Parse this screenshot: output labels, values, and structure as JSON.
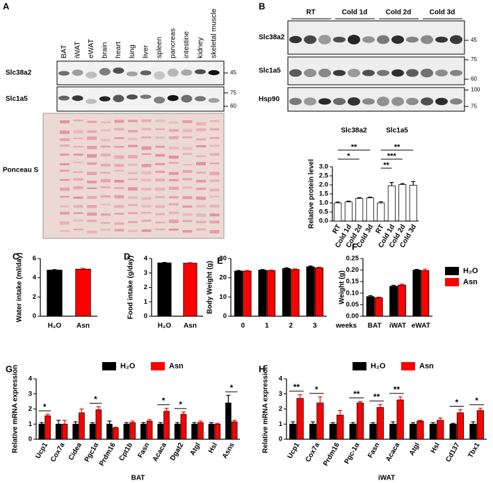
{
  "blot_a": {
    "panel": "A",
    "lanes": [
      "BAT",
      "iWAT",
      "eWAT",
      "brain",
      "heart",
      "lung",
      "liver",
      "spleen",
      "pancreas",
      "intestine",
      "kidney",
      "skeletal muscle"
    ],
    "rows": [
      {
        "label": "Slc38a2",
        "markers": [
          45
        ]
      },
      {
        "label": "Slc1a5",
        "markers": [
          75,
          60
        ]
      }
    ],
    "stain": "Ponceau S"
  },
  "blot_b": {
    "panel": "B",
    "groups": [
      "RT",
      "Cold 1d",
      "Cold 2d",
      "Cold 3d"
    ],
    "rows": [
      {
        "label": "Slc38a2",
        "markers": [
          45
        ]
      },
      {
        "label": "Slc1a5",
        "markers": [
          75,
          60
        ]
      },
      {
        "label": "Hsp90",
        "markers": [
          100,
          75
        ]
      }
    ]
  },
  "chart_data": [
    {
      "type": "bar",
      "group_labels": [
        "Slc38a2",
        "Slc1a5"
      ],
      "categories": [
        "RT",
        "Cold 1d",
        "Cold 2d",
        "Cold 3d",
        "RT",
        "Cold 1d",
        "Cold 2d",
        "Cold 3d"
      ],
      "series": [
        {
          "color": "#ffffff",
          "values": [
            1.0,
            1.05,
            1.25,
            1.28,
            1.0,
            1.95,
            2.02,
            1.98
          ],
          "errors": [
            0.05,
            0.05,
            0.04,
            0.04,
            0.06,
            0.18,
            0.05,
            0.2
          ]
        }
      ],
      "significance": [
        null,
        null,
        "*",
        "**",
        null,
        "**",
        "***",
        "**"
      ],
      "ylabel": "Relative protein level",
      "ylim": [
        0,
        3
      ],
      "yticks": [
        {
          "value": 0,
          "label": "0.0"
        },
        {
          "value": 0.5,
          "label": "0.5"
        },
        {
          "value": 1,
          "label": "1.0"
        },
        {
          "value": 1.5,
          "label": "1.5"
        },
        {
          "value": 2,
          "label": "2.0"
        },
        {
          "value": 2.5,
          "label": "2.5"
        },
        {
          "value": 3,
          "label": "3.0"
        }
      ]
    },
    {
      "type": "bar",
      "panel": "C",
      "ylabel": "Water intake (ml/day)",
      "categories": [
        "H₂O",
        "Asn"
      ],
      "series": [
        {
          "colors": [
            "#000000",
            "#ff0000"
          ],
          "values": [
            4.8,
            4.9
          ],
          "errors": [
            0.05,
            0.08
          ]
        }
      ],
      "ylim": [
        0,
        6
      ],
      "yticks": [
        0,
        2,
        4,
        6
      ]
    },
    {
      "type": "bar",
      "panel": "D",
      "ylabel": "Food intake (g/day)",
      "categories": [
        "H₂O",
        "Asn"
      ],
      "series": [
        {
          "colors": [
            "#000000",
            "#ff0000"
          ],
          "values": [
            3.7,
            3.68
          ],
          "errors": [
            0.03,
            0.03
          ]
        }
      ],
      "ylim": [
        0,
        4
      ],
      "yticks": [
        0,
        1,
        2,
        3,
        4
      ]
    },
    {
      "type": "bar",
      "panel": "E",
      "ylabel": "Body Weight (g)",
      "xlabel": "weeks",
      "categories": [
        "0",
        "1",
        "2",
        "3"
      ],
      "series": [
        {
          "color": "#000000",
          "values": [
            23.5,
            24.0,
            24.8,
            25.7
          ],
          "errors": [
            0.3,
            0.3,
            0.4,
            0.4
          ]
        },
        {
          "color": "#ff0000",
          "values": [
            23.5,
            23.7,
            24.3,
            25.2
          ],
          "errors": [
            0.3,
            0.3,
            0.3,
            0.3
          ]
        }
      ],
      "ylim": [
        0,
        30
      ],
      "yticks": [
        0,
        10,
        20,
        30
      ]
    },
    {
      "type": "bar",
      "panel": "F",
      "ylabel": "Weight (g)",
      "categories": [
        "BAT",
        "iWAT",
        "eWAT"
      ],
      "legend": "right",
      "series": [
        {
          "name": "H₂O",
          "color": "#000000",
          "values": [
            0.085,
            0.13,
            0.2
          ],
          "errors": [
            0.004,
            0.004,
            0.003
          ]
        },
        {
          "name": "Asn",
          "color": "#ff0000",
          "values": [
            0.08,
            0.135,
            0.198
          ],
          "errors": [
            0.003,
            0.004,
            0.006
          ]
        }
      ],
      "ylim": [
        0,
        0.25
      ],
      "yticks": [
        {
          "value": 0,
          "label": "0.00"
        },
        {
          "value": 0.05,
          "label": "0.05"
        },
        {
          "value": 0.1,
          "label": "0.10"
        },
        {
          "value": 0.15,
          "label": "0.15"
        },
        {
          "value": 0.2,
          "label": "0.20"
        },
        {
          "value": 0.25,
          "label": "0.25"
        }
      ]
    },
    {
      "type": "bar",
      "panel": "G",
      "ylabel": "Relative mRNA expression",
      "xlabel": "BAT",
      "legend": "top",
      "categories": [
        "Ucp1",
        "Cox7a",
        "Cidea",
        "Pgc1α",
        "Prdm16",
        "Cpt1b",
        "Fasn",
        "Acaca",
        "Dgat2",
        "Atgl",
        "Hsl",
        "Asns"
      ],
      "series": [
        {
          "name": "H₂O",
          "color": "#000000",
          "values": [
            1.0,
            1.0,
            1.0,
            1.0,
            1.0,
            1.0,
            1.0,
            1.0,
            1.0,
            1.0,
            1.0,
            2.4
          ],
          "errors": [
            0.1,
            0.25,
            0.15,
            0.1,
            0.2,
            0.1,
            0.1,
            0.1,
            0.1,
            0.1,
            0.1,
            0.5
          ]
        },
        {
          "name": "Asn",
          "color": "#ff0000",
          "values": [
            1.55,
            1.0,
            1.75,
            1.95,
            0.75,
            1.1,
            1.2,
            1.85,
            1.65,
            1.1,
            1.0,
            1.15
          ],
          "errors": [
            0.1,
            0.25,
            0.25,
            0.2,
            0.05,
            0.1,
            0.1,
            0.2,
            0.15,
            0.1,
            0.05,
            0.1
          ]
        }
      ],
      "significance": [
        "*",
        null,
        null,
        "*",
        null,
        null,
        null,
        "*",
        "*",
        null,
        null,
        "*"
      ],
      "ylim": [
        0,
        4
      ],
      "yticks": [
        0,
        1,
        2,
        3,
        4
      ]
    },
    {
      "type": "bar",
      "panel": "H",
      "ylabel": "Relative mRNA expression",
      "xlabel": "iWAT",
      "legend": "top",
      "categories": [
        "Ucp1",
        "Cox7a",
        "Prdm16",
        "Pgc-1α",
        "Fasn",
        "Acaca",
        "Atgl",
        "Hsl",
        "Cd137",
        "Tbx1"
      ],
      "series": [
        {
          "name": "H₂O",
          "color": "#000000",
          "values": [
            1.0,
            1.0,
            1.0,
            1.0,
            1.0,
            1.0,
            1.0,
            1.0,
            1.0,
            1.0
          ],
          "errors": [
            0.15,
            0.15,
            0.1,
            0.1,
            0.1,
            0.15,
            0.1,
            0.1,
            0.05,
            0.15
          ]
        },
        {
          "name": "Asn",
          "color": "#ff0000",
          "values": [
            2.7,
            2.4,
            1.6,
            2.4,
            2.1,
            2.6,
            1.2,
            1.25,
            1.75,
            1.9
          ],
          "errors": [
            0.25,
            0.4,
            0.3,
            0.1,
            0.2,
            0.2,
            0.05,
            0.15,
            0.2,
            0.15
          ]
        }
      ],
      "significance": [
        "**",
        "*",
        null,
        "**",
        "**",
        "**",
        null,
        null,
        "*",
        "*"
      ],
      "ylim": [
        0,
        4
      ],
      "yticks": [
        0,
        1,
        2,
        3,
        4
      ]
    }
  ]
}
